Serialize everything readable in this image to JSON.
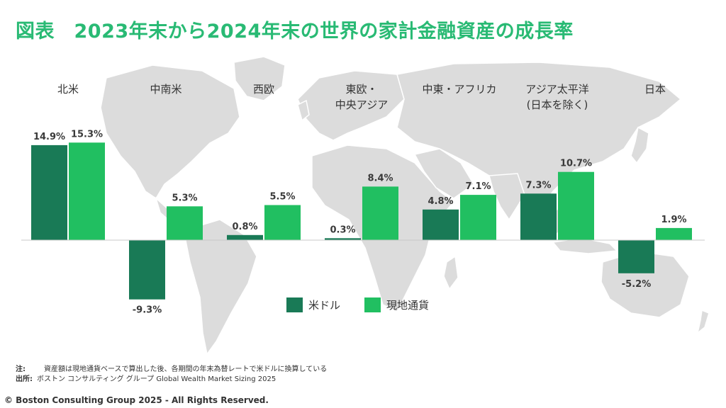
{
  "title": "図表　2023年末から2024年末の世界の家計金融資産の成長率",
  "chart_data": {
    "type": "bar",
    "categories": [
      [
        "北米"
      ],
      [
        "中南米"
      ],
      [
        "西欧"
      ],
      [
        "東欧・",
        "中央アジア"
      ],
      [
        "中東・アフリカ"
      ],
      [
        "アジア太平洋",
        "(日本を除く)"
      ],
      [
        "日本"
      ]
    ],
    "series": [
      {
        "name": "米ドル",
        "color": "#197A56",
        "values": [
          14.9,
          -9.3,
          0.8,
          0.3,
          4.8,
          7.3,
          -5.2
        ],
        "labels": [
          "14.9%",
          "-9.3%",
          "0.8%",
          "0.3%",
          "4.8%",
          "7.3%",
          "-5.2%"
        ]
      },
      {
        "name": "現地通貨",
        "color": "#21BF61",
        "values": [
          15.3,
          5.3,
          5.5,
          8.4,
          7.1,
          10.7,
          1.9
        ],
        "labels": [
          "15.3%",
          "5.3%",
          "5.5%",
          "8.4%",
          "7.1%",
          "10.7%",
          "1.9%"
        ]
      }
    ],
    "unit": "%",
    "ylim": [
      -12,
      16
    ]
  },
  "legend": [
    {
      "label": "米ドル",
      "color": "#197A56"
    },
    {
      "label": "現地通貨",
      "color": "#21BF61"
    }
  ],
  "notes": {
    "note_key": "注:",
    "note_text": "資産額は現地通貨ベースで算出した後、各期間の年末為替レートで米ドルに換算している",
    "source_key": "出所:",
    "source_text": "ボストン コンサルティング グループ Global Wealth Market Sizing 2025"
  },
  "copyright": "© Boston Consulting Group 2025 - All Rights Reserved."
}
